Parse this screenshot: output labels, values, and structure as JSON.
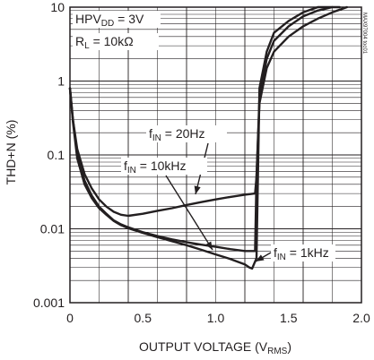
{
  "chart_data": {
    "type": "line",
    "xlabel": "OUTPUT VOLTAGE (V",
    "xlabel_sub": "RMS",
    "xlabel_end": ")",
    "ylabel": "THD+N (%)",
    "x_scale": "linear",
    "y_scale": "log",
    "xlim": [
      0,
      2.0
    ],
    "ylim": [
      0.001,
      10
    ],
    "x_ticks": [
      "0",
      "0.5",
      "1.0",
      "1.5",
      "2.0"
    ],
    "y_ticks": [
      "0.001",
      "0.01",
      "0.1",
      "1",
      "10"
    ],
    "grid": true,
    "conditions": [
      {
        "base": "HPV",
        "sub": "DD",
        "rest": " = 3V"
      },
      {
        "base": "R",
        "sub": "L",
        "rest": " = 10kΩ"
      }
    ],
    "chart_code": "MAX97004 toc01",
    "annotations": [
      {
        "base": "f",
        "sub": "IN",
        "rest": " = 20Hz"
      },
      {
        "base": "f",
        "sub": "IN",
        "rest": " = 10kHz"
      },
      {
        "base": "f",
        "sub": "IN",
        "rest": " = 1kHz"
      }
    ],
    "series": [
      {
        "x": [
          0.0,
          0.02,
          0.05,
          0.1,
          0.15,
          0.2,
          0.25,
          0.3,
          0.35,
          0.4,
          0.5,
          0.6,
          0.7,
          0.8,
          0.9,
          1.0,
          1.1,
          1.2,
          1.27,
          1.28,
          1.3,
          1.35,
          1.4,
          1.5,
          1.6,
          1.7,
          1.8,
          1.9
        ],
        "y": [
          0.8,
          0.3,
          0.12,
          0.055,
          0.035,
          0.025,
          0.02,
          0.017,
          0.0155,
          0.015,
          0.016,
          0.0175,
          0.019,
          0.021,
          0.023,
          0.025,
          0.027,
          0.029,
          0.03,
          0.05,
          0.5,
          1.5,
          2.5,
          4.0,
          5.5,
          7.0,
          8.5,
          10.0
        ]
      },
      {
        "x": [
          0.0,
          0.02,
          0.05,
          0.1,
          0.15,
          0.2,
          0.25,
          0.3,
          0.35,
          0.4,
          0.5,
          0.6,
          0.7,
          0.8,
          0.9,
          1.0,
          1.1,
          1.2,
          1.27,
          1.28,
          1.3,
          1.35,
          1.4,
          1.5,
          1.6,
          1.7,
          1.8,
          1.85
        ],
        "y": [
          0.8,
          0.3,
          0.1,
          0.045,
          0.028,
          0.02,
          0.016,
          0.013,
          0.0115,
          0.0105,
          0.009,
          0.008,
          0.0072,
          0.0066,
          0.0061,
          0.0057,
          0.0053,
          0.005,
          0.005,
          0.05,
          0.6,
          2.0,
          3.5,
          5.5,
          7.5,
          9.0,
          10.0,
          10.0
        ]
      },
      {
        "x": [
          0.0,
          0.02,
          0.05,
          0.1,
          0.15,
          0.2,
          0.25,
          0.3,
          0.35,
          0.4,
          0.5,
          0.6,
          0.7,
          0.8,
          0.9,
          1.0,
          1.1,
          1.2,
          1.23,
          1.25,
          1.28,
          1.3,
          1.35,
          1.4,
          1.5,
          1.6,
          1.7,
          1.8
        ],
        "y": [
          0.8,
          0.28,
          0.09,
          0.04,
          0.026,
          0.019,
          0.0155,
          0.0128,
          0.0112,
          0.0102,
          0.0088,
          0.0077,
          0.0068,
          0.006,
          0.0052,
          0.0045,
          0.0039,
          0.0033,
          0.003,
          0.0029,
          0.004,
          0.8,
          2.5,
          4.5,
          6.5,
          8.5,
          10.0,
          10.0
        ]
      }
    ]
  }
}
